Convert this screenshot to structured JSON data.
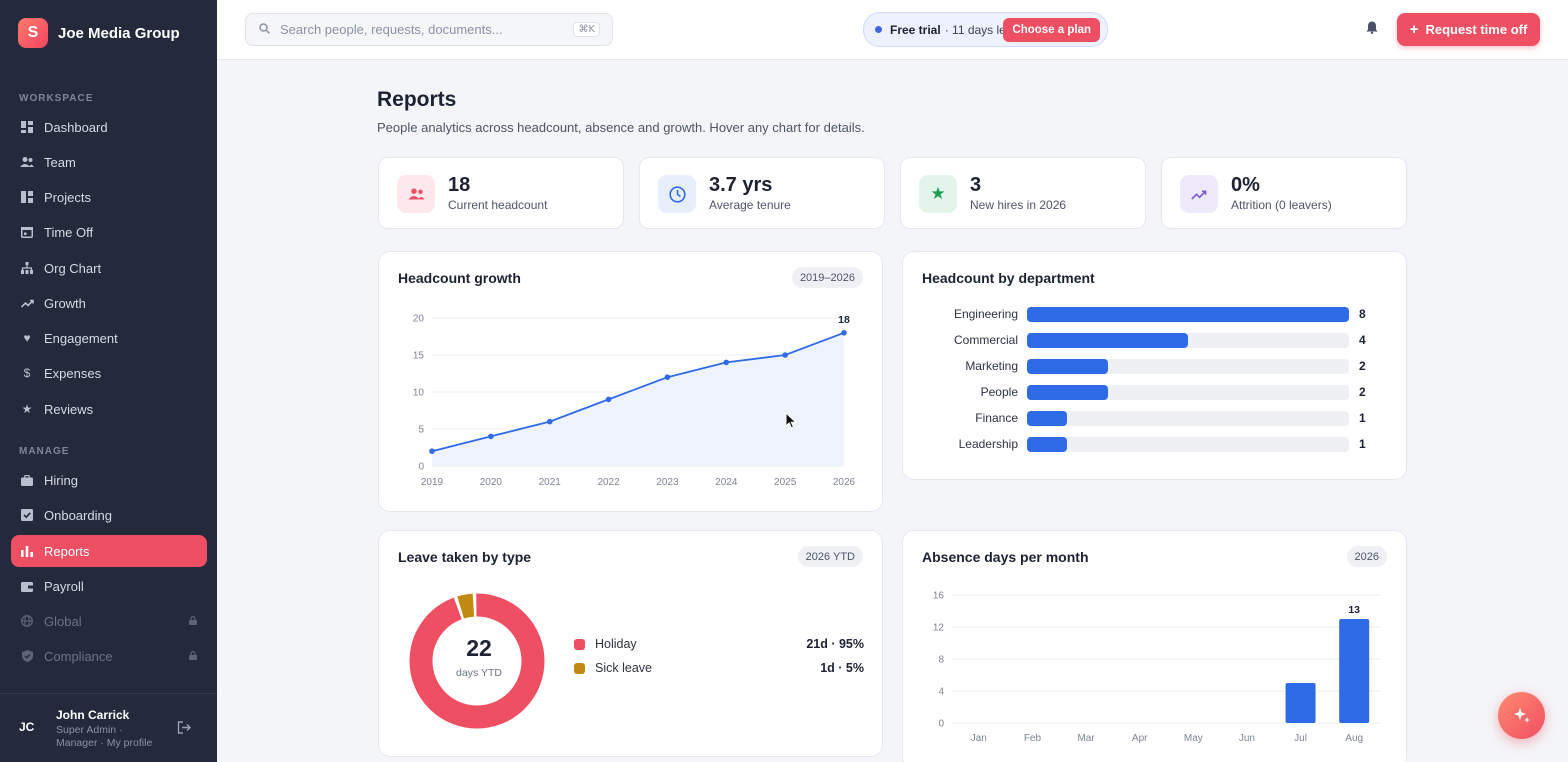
{
  "brand": {
    "logo_letter": "S",
    "name": "Joe Media Group"
  },
  "sidebar": {
    "workspace_label": "WORKSPACE",
    "workspace_items": [
      {
        "label": "Dashboard",
        "icon": "dashboard-icon"
      },
      {
        "label": "Team",
        "icon": "team-icon"
      },
      {
        "label": "Projects",
        "icon": "projects-icon"
      },
      {
        "label": "Time Off",
        "icon": "calendar-icon"
      },
      {
        "label": "Org Chart",
        "icon": "org-chart-icon"
      },
      {
        "label": "Growth",
        "icon": "trend-icon"
      },
      {
        "label": "Engagement",
        "icon": "heart-icon"
      },
      {
        "label": "Expenses",
        "icon": "dollar-icon"
      },
      {
        "label": "Reviews",
        "icon": "star-icon"
      }
    ],
    "manage_label": "MANAGE",
    "manage_items": [
      {
        "label": "Hiring",
        "icon": "briefcase-icon"
      },
      {
        "label": "Onboarding",
        "icon": "checkbox-icon"
      },
      {
        "label": "Reports",
        "icon": "bar-chart-icon",
        "active": true
      },
      {
        "label": "Payroll",
        "icon": "wallet-icon"
      },
      {
        "label": "Global",
        "icon": "globe-icon",
        "disabled": true
      },
      {
        "label": "Compliance",
        "icon": "shield-icon",
        "disabled": true
      }
    ],
    "user": {
      "initials": "JC",
      "name": "John Carrick",
      "role": "Super Admin · Manager · My profile"
    }
  },
  "topbar": {
    "search_placeholder": "Search people, requests, documents...",
    "search_shortcut": "⌘K",
    "trial_bold": "Free trial",
    "trial_text": "· 11 days left",
    "trial_button": "Choose a plan",
    "request_button": "Request time off"
  },
  "page": {
    "title": "Reports",
    "subtitle": "People analytics across headcount, absence and growth. Hover any chart for details."
  },
  "stats": [
    {
      "value": "18",
      "label": "Current headcount",
      "icon": "people-icon",
      "color": "#ef4f63",
      "bg": "#fde8eb"
    },
    {
      "value": "3.7 yrs",
      "label": "Average tenure",
      "icon": "clock-icon",
      "color": "#2f6be6",
      "bg": "#e7eefc"
    },
    {
      "value": "3",
      "label": "New hires in 2026",
      "icon": "star-icon",
      "color": "#1f9d55",
      "bg": "#e3f5ea"
    },
    {
      "value": "0%",
      "label": "Attrition (0 leavers)",
      "icon": "trend-icon",
      "color": "#7c5cd6",
      "bg": "#efeafb"
    }
  ],
  "headcount_growth": {
    "title": "Headcount growth",
    "pill": "2019–2026"
  },
  "headcount_by_department": {
    "title": "Headcount by department"
  },
  "leave_by_type": {
    "title": "Leave taken by type",
    "pill": "2026 YTD",
    "center_value": "22",
    "center_label": "days YTD"
  },
  "absence_per_month": {
    "title": "Absence days per month",
    "pill": "2026"
  },
  "colors": {
    "accent": "#ef4f63",
    "chart_blue": "#2f6be6",
    "sick": "#c18a12"
  },
  "chart_data": [
    {
      "type": "line",
      "x": [
        "2019",
        "2020",
        "2021",
        "2022",
        "2023",
        "2024",
        "2025",
        "2026"
      ],
      "series": [
        {
          "values": [
            2,
            4,
            6,
            9,
            12,
            14,
            15,
            18
          ]
        }
      ],
      "ylim": [
        0,
        20
      ],
      "yticks": [
        "0",
        "5",
        "10",
        "15",
        "20"
      ],
      "end_label": "18"
    },
    {
      "type": "bar",
      "orientation": "horizontal",
      "categories": [
        "Engineering",
        "Commercial",
        "Marketing",
        "People",
        "Finance",
        "Leadership"
      ],
      "values": [
        8,
        4,
        2,
        2,
        1,
        1
      ],
      "xlim": [
        0,
        8
      ]
    },
    {
      "type": "pie",
      "categories": [
        "Holiday",
        "Sick leave"
      ],
      "values": [
        21,
        1
      ],
      "labels": [
        "21d · 95%",
        "1d · 5%"
      ]
    },
    {
      "type": "bar",
      "categories": [
        "Jan",
        "Feb",
        "Mar",
        "Apr",
        "May",
        "Jun",
        "Jul",
        "Aug"
      ],
      "values": [
        0,
        0,
        0,
        0,
        0,
        0,
        5,
        13
      ],
      "ylim": [
        0,
        16
      ],
      "yticks": [
        "0",
        "4",
        "8",
        "12",
        "16"
      ],
      "top_label": "13"
    }
  ]
}
